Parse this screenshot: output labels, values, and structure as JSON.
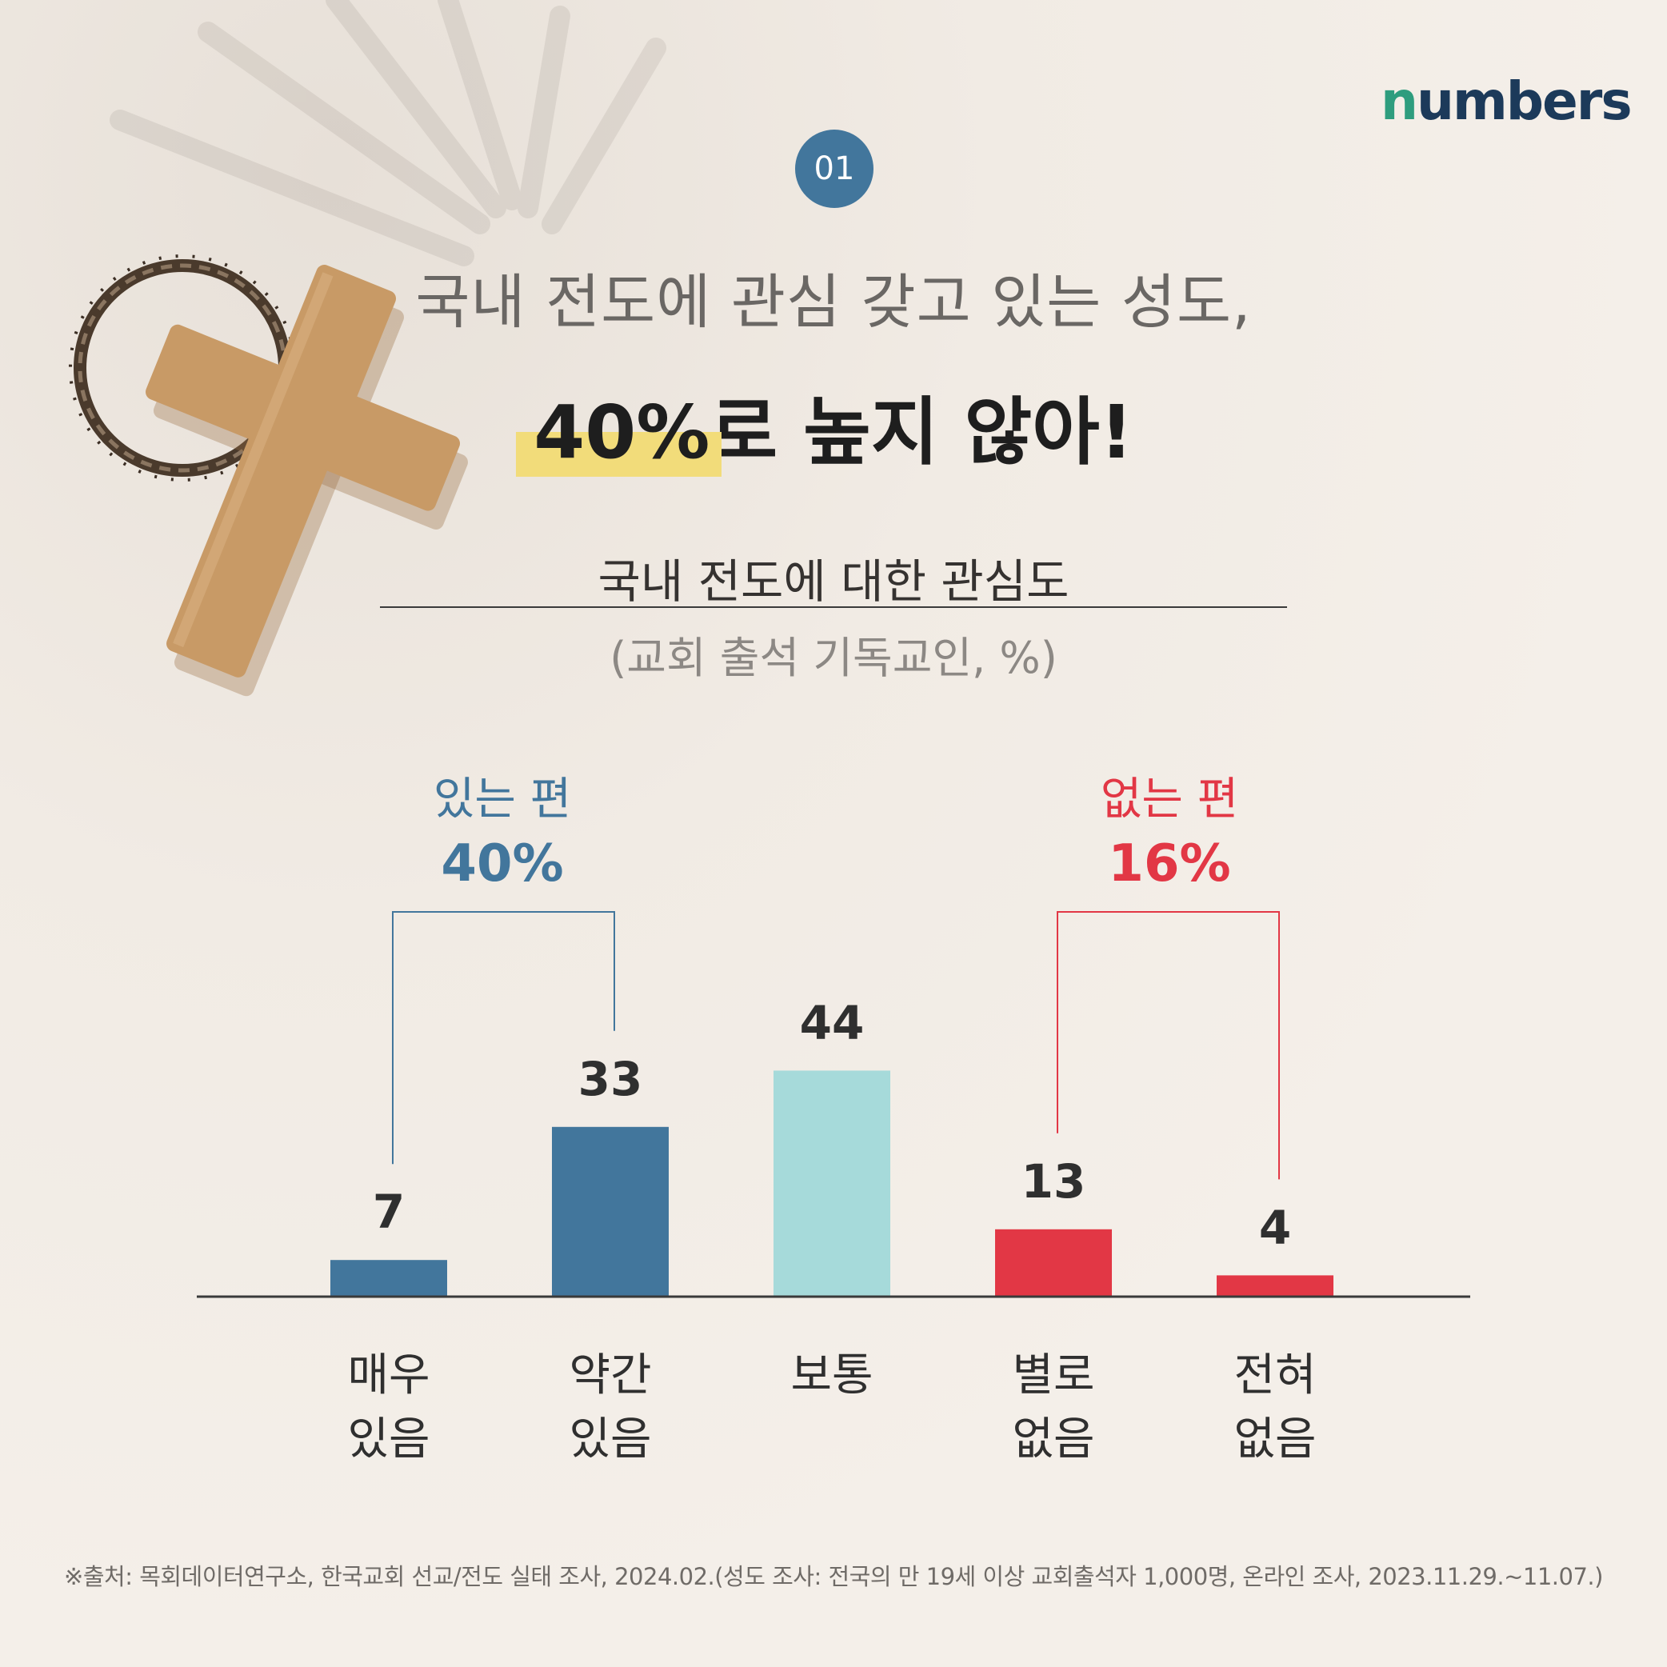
{
  "logo": {
    "first": "n",
    "rest": "umbers"
  },
  "badge": "01",
  "headline": {
    "line1": "국내 전도에 관심 갖고 있는 성도,",
    "line2_highlight": "40%",
    "line2_rest": "로 높지 않아!"
  },
  "chart_data": {
    "type": "bar",
    "title": "국내 전도에 대한 관심도",
    "subtitle": "(교회 출석 기독교인, %)",
    "categories": [
      [
        "매우",
        "있음"
      ],
      [
        "약간",
        "있음"
      ],
      [
        "보통"
      ],
      [
        "별로",
        "없음"
      ],
      [
        "전혀",
        "없음"
      ]
    ],
    "values": [
      7,
      33,
      44,
      13,
      4
    ],
    "colors": [
      "#42769c",
      "#42769c",
      "#a6dada",
      "#e23745",
      "#e23745"
    ],
    "ylim": [
      0,
      50
    ],
    "groups": [
      {
        "label": "있는 편",
        "value": "40%",
        "color": "#42769c",
        "members": [
          0,
          1
        ]
      },
      {
        "label": "없는 편",
        "value": "16%",
        "color": "#e23745",
        "members": [
          3,
          4
        ]
      }
    ]
  },
  "source": "※출처: 목회데이터연구소, 한국교회 선교/전도 실태 조사, 2024.02.(성도 조사: 전국의 만 19세 이상 교회출석자 1,000명, 온라인 조사, 2023.11.29.~11.07.)"
}
